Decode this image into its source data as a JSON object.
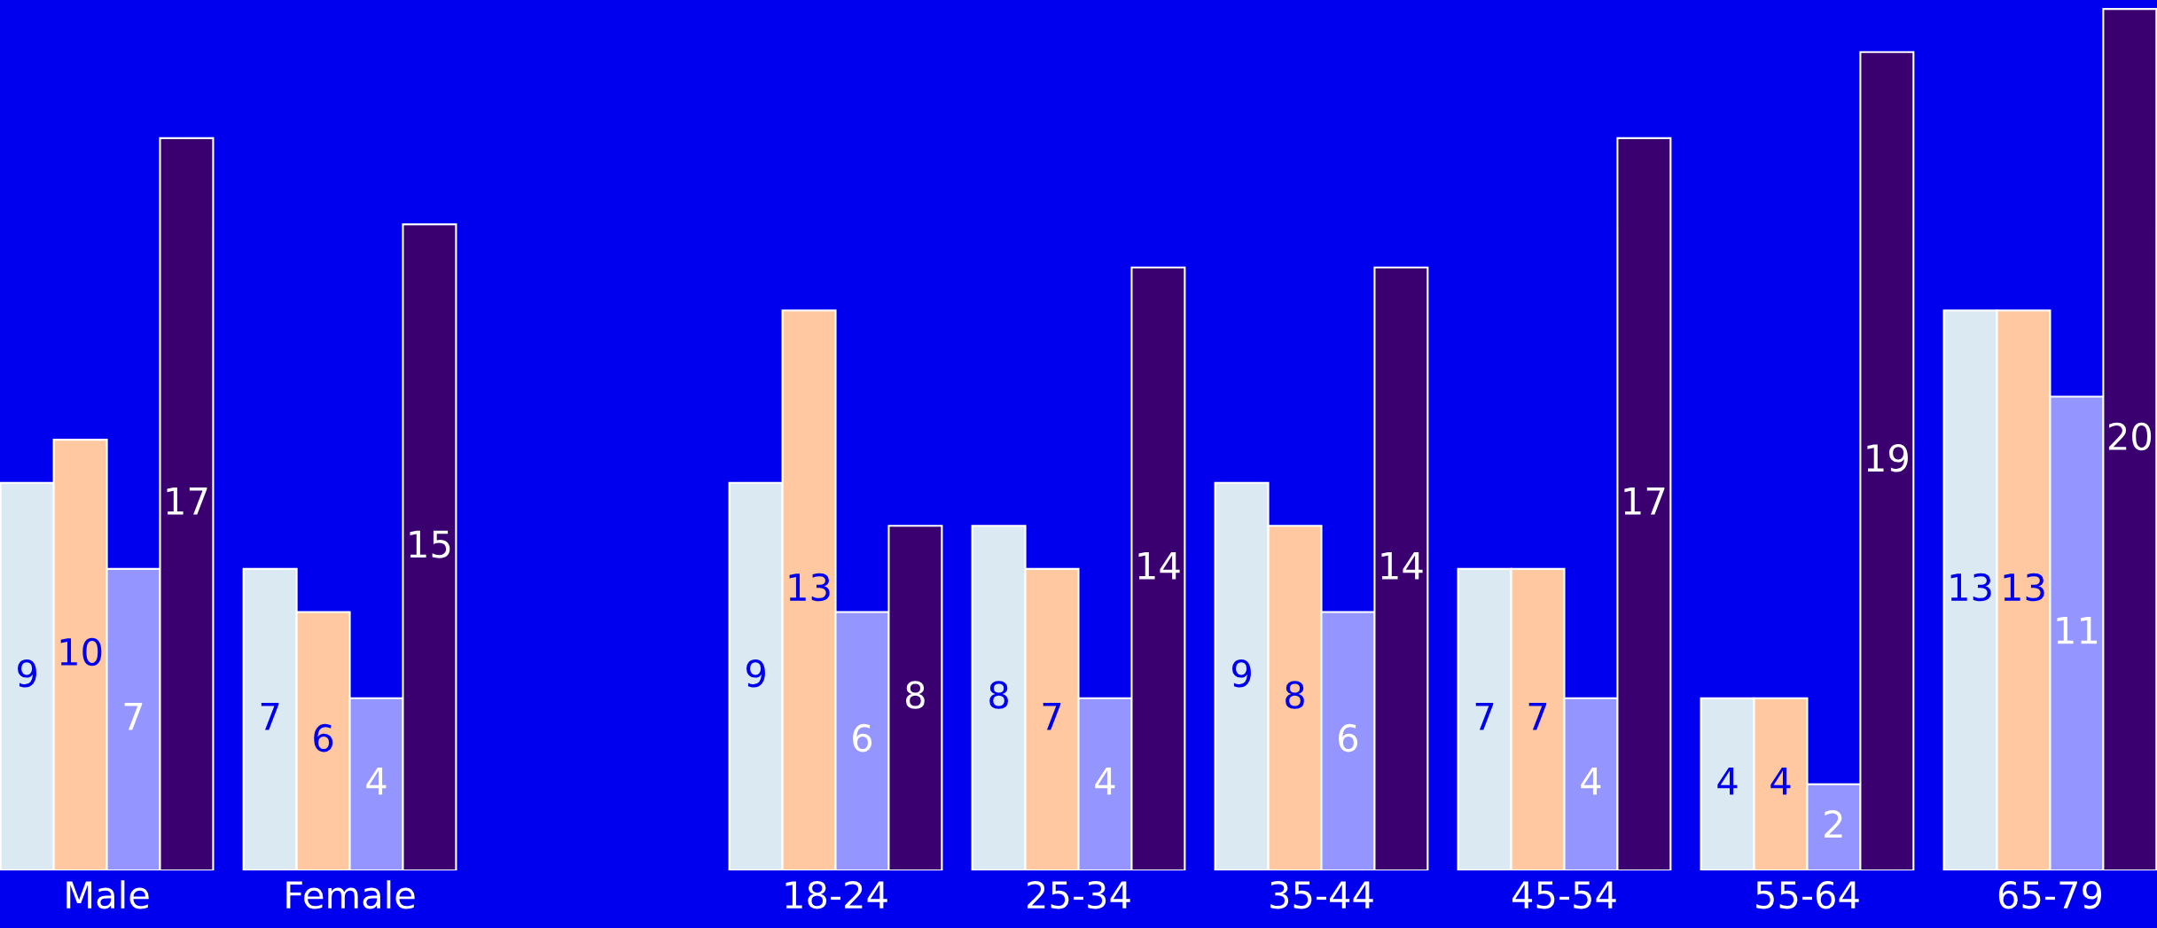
{
  "chart_data": {
    "type": "bar",
    "categories": [
      "Male",
      "Female",
      null,
      "18-24",
      "25-34",
      "35-44",
      "45-54",
      "55-64",
      "65-79"
    ],
    "series": [
      {
        "color": "#dbe9f3",
        "values": [
          9,
          7,
          null,
          9,
          8,
          9,
          7,
          4,
          13
        ]
      },
      {
        "color": "#ffc8a0",
        "values": [
          10,
          6,
          null,
          13,
          7,
          8,
          7,
          4,
          13
        ]
      },
      {
        "color": "#9595ff",
        "values": [
          7,
          4,
          null,
          6,
          4,
          6,
          4,
          2,
          11
        ]
      },
      {
        "color": "#3a0070",
        "values": [
          17,
          15,
          null,
          8,
          14,
          14,
          17,
          19,
          20
        ]
      }
    ],
    "data_labels": true,
    "grid": false,
    "legend": false
  }
}
